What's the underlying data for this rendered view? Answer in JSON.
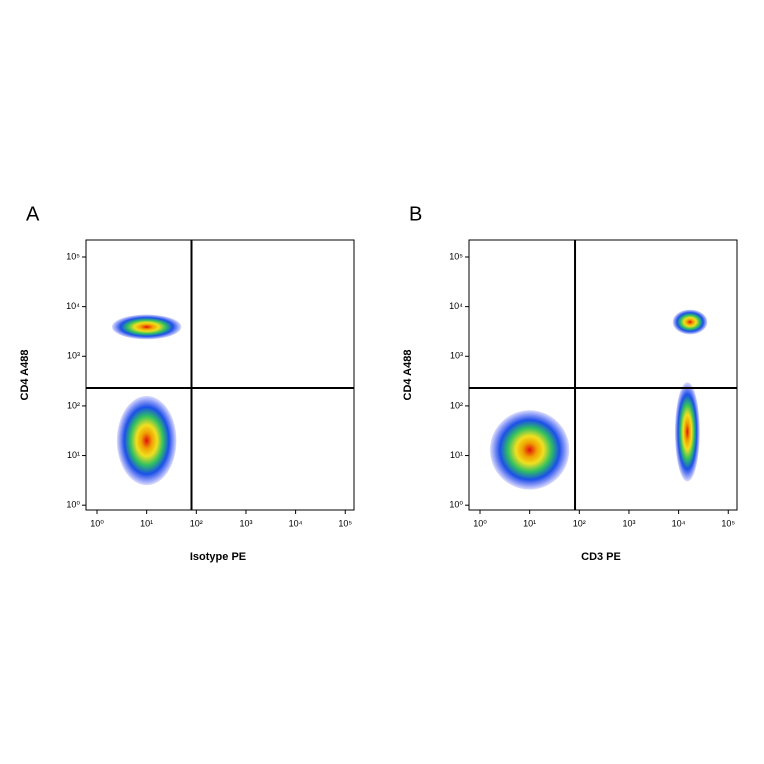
{
  "chart_data": [
    {
      "type": "scatter",
      "panel_label": "A",
      "xlabel": "Isotype PE",
      "ylabel": "CD4 A488",
      "xscale": "log",
      "yscale": "log",
      "xlim": [
        0.6,
        150000
      ],
      "ylim": [
        0.8,
        220000
      ],
      "xticks": [
        {
          "value": 1,
          "label": "10⁰"
        },
        {
          "value": 10,
          "label": "10¹"
        },
        {
          "value": 100,
          "label": "10²"
        },
        {
          "value": 1000,
          "label": "10³"
        },
        {
          "value": 10000,
          "label": "10⁴"
        },
        {
          "value": 100000,
          "label": "10⁵"
        }
      ],
      "yticks": [
        {
          "value": 1,
          "label": "10⁰"
        },
        {
          "value": 10,
          "label": "10¹"
        },
        {
          "value": 100,
          "label": "10²"
        },
        {
          "value": 1000,
          "label": "10³"
        },
        {
          "value": 10000,
          "label": "10⁴"
        },
        {
          "value": 100000,
          "label": "10⁵"
        }
      ],
      "gate": {
        "x": 80,
        "y": 230
      },
      "clusters": [
        {
          "x": 10,
          "y": 3900,
          "spread_x": 0.7,
          "spread_y": 0.25
        },
        {
          "x": 10,
          "y": 20,
          "spread_x": 0.6,
          "spread_y": 0.9
        }
      ]
    },
    {
      "type": "scatter",
      "panel_label": "B",
      "xlabel": "CD3 PE",
      "ylabel": "CD4 A488",
      "xscale": "log",
      "yscale": "log",
      "xlim": [
        0.6,
        150000
      ],
      "ylim": [
        0.8,
        220000
      ],
      "xticks": [
        {
          "value": 1,
          "label": "10⁰"
        },
        {
          "value": 10,
          "label": "10¹"
        },
        {
          "value": 100,
          "label": "10²"
        },
        {
          "value": 1000,
          "label": "10³"
        },
        {
          "value": 10000,
          "label": "10⁴"
        },
        {
          "value": 100000,
          "label": "10⁵"
        }
      ],
      "yticks": [
        {
          "value": 1,
          "label": "10⁰"
        },
        {
          "value": 10,
          "label": "10¹"
        },
        {
          "value": 100,
          "label": "10²"
        },
        {
          "value": 1000,
          "label": "10³"
        },
        {
          "value": 10000,
          "label": "10⁴"
        },
        {
          "value": 100000,
          "label": "10⁵"
        }
      ],
      "gate": {
        "x": 82,
        "y": 230
      },
      "clusters": [
        {
          "x": 10,
          "y": 13,
          "spread_x": 0.8,
          "spread_y": 0.8
        },
        {
          "x": 17000,
          "y": 4900,
          "spread_x": 0.35,
          "spread_y": 0.25
        },
        {
          "x": 15000,
          "y": 30,
          "spread_x": 0.25,
          "spread_y": 1.0
        }
      ]
    }
  ]
}
